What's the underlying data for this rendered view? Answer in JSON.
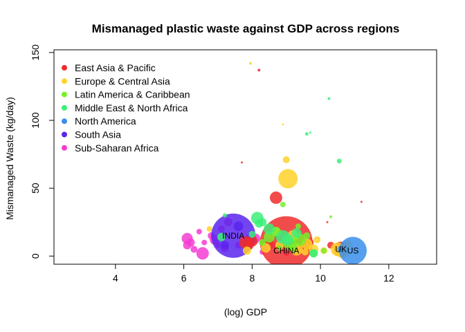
{
  "chart_data": {
    "type": "scatter",
    "title": "Mismanaged plastic waste against GDP across regions",
    "xlabel": "(log) GDP",
    "ylabel": "Mismanaged Waste (kg/day)",
    "xlim": [
      2.2,
      13.4
    ],
    "ylim": [
      -6,
      152
    ],
    "xticks": [
      "4",
      "6",
      "8",
      "10",
      "12"
    ],
    "yticks": [
      "0",
      "50",
      "100",
      "150"
    ],
    "grid": false,
    "legend_position": "top-left",
    "legend": [
      {
        "name": "East Asia & Pacific",
        "color": "#F02C2C"
      },
      {
        "name": "Europe & Central Asia",
        "color": "#FFD22A"
      },
      {
        "name": "Latin America & Caribbean",
        "color": "#73F02C"
      },
      {
        "name": "Middle East & North Africa",
        "color": "#3CF07A"
      },
      {
        "name": "North America",
        "color": "#3A8EEC"
      },
      {
        "name": "South Asia",
        "color": "#5A24EE"
      },
      {
        "name": "Sub-Saharan Africa",
        "color": "#F43CD4"
      }
    ],
    "annotations": [
      {
        "text": "INDIA",
        "x": 7.45,
        "y": 15
      },
      {
        "text": "CHINA",
        "x": 9.0,
        "y": 4
      },
      {
        "text": "UK",
        "x": 10.6,
        "y": 5
      },
      {
        "text": "US",
        "x": 10.95,
        "y": 4
      }
    ],
    "series": [
      {
        "name": "Sub-Saharan Africa",
        "points": [
          {
            "x": 6.1,
            "y": 13,
            "size": 8
          },
          {
            "x": 6.2,
            "y": 10,
            "size": 6
          },
          {
            "x": 6.1,
            "y": 8,
            "size": 6
          },
          {
            "x": 6.3,
            "y": 5,
            "size": 5
          },
          {
            "x": 6.55,
            "y": 2,
            "size": 9
          },
          {
            "x": 6.9,
            "y": 12,
            "size": 7
          },
          {
            "x": 7.1,
            "y": 20,
            "size": 5
          },
          {
            "x": 6.8,
            "y": 15,
            "size": 5
          },
          {
            "x": 7.2,
            "y": 6,
            "size": 6
          },
          {
            "x": 7.3,
            "y": 25,
            "size": 6
          },
          {
            "x": 7.6,
            "y": 8,
            "size": 5
          },
          {
            "x": 7.95,
            "y": 12,
            "size": 9
          },
          {
            "x": 8.1,
            "y": 13,
            "size": 7
          },
          {
            "x": 6.6,
            "y": 10,
            "size": 4
          },
          {
            "x": 7.0,
            "y": 8,
            "size": 4
          },
          {
            "x": 7.8,
            "y": 6,
            "size": 4
          },
          {
            "x": 8.3,
            "y": 3,
            "size": 4
          },
          {
            "x": 8.6,
            "y": 8,
            "size": 5
          },
          {
            "x": 9.0,
            "y": 2,
            "size": 4
          },
          {
            "x": 6.45,
            "y": 18,
            "size": 4
          }
        ]
      },
      {
        "name": "South Asia",
        "points": [
          {
            "x": 7.45,
            "y": 15,
            "size": 32
          },
          {
            "x": 7.6,
            "y": 22,
            "size": 7
          },
          {
            "x": 7.2,
            "y": 8,
            "size": 6
          },
          {
            "x": 7.9,
            "y": 10,
            "size": 5
          },
          {
            "x": 8.35,
            "y": 6,
            "size": 5
          }
        ]
      },
      {
        "name": "East Asia & Pacific",
        "points": [
          {
            "x": 9.0,
            "y": 10,
            "size": 38
          },
          {
            "x": 8.7,
            "y": 43,
            "size": 9
          },
          {
            "x": 8.2,
            "y": 137,
            "size": 2
          },
          {
            "x": 7.8,
            "y": 10,
            "size": 9
          },
          {
            "x": 7.9,
            "y": 8,
            "size": 7
          },
          {
            "x": 8.0,
            "y": 11,
            "size": 8
          },
          {
            "x": 8.5,
            "y": 10,
            "size": 6
          },
          {
            "x": 9.5,
            "y": 8,
            "size": 6
          },
          {
            "x": 10.2,
            "y": 25,
            "size": 1.5
          },
          {
            "x": 7.7,
            "y": 69,
            "size": 1.5
          },
          {
            "x": 11.2,
            "y": 40,
            "size": 1.5
          },
          {
            "x": 10.6,
            "y": 5,
            "size": 11
          },
          {
            "x": 10.3,
            "y": 8,
            "size": 5
          },
          {
            "x": 9.7,
            "y": 10,
            "size": 5
          }
        ]
      },
      {
        "name": "Europe & Central Asia",
        "points": [
          {
            "x": 9.05,
            "y": 57,
            "size": 14
          },
          {
            "x": 9.0,
            "y": 71,
            "size": 5
          },
          {
            "x": 7.95,
            "y": 142,
            "size": 2
          },
          {
            "x": 8.9,
            "y": 97,
            "size": 1.5
          },
          {
            "x": 9.3,
            "y": 5,
            "size": 9
          },
          {
            "x": 9.2,
            "y": 15,
            "size": 8
          },
          {
            "x": 9.6,
            "y": 9,
            "size": 8
          },
          {
            "x": 9.8,
            "y": 5,
            "size": 7
          },
          {
            "x": 10.5,
            "y": 5,
            "size": 10
          },
          {
            "x": 10.65,
            "y": 3,
            "size": 9
          },
          {
            "x": 10.8,
            "y": 8,
            "size": 7
          },
          {
            "x": 8.4,
            "y": 6,
            "size": 7
          },
          {
            "x": 8.7,
            "y": 18,
            "size": 6
          },
          {
            "x": 8.8,
            "y": 8,
            "size": 6
          },
          {
            "x": 9.9,
            "y": 12,
            "size": 5
          },
          {
            "x": 6.75,
            "y": 20,
            "size": 4
          },
          {
            "x": 7.85,
            "y": 4,
            "size": 6
          },
          {
            "x": 10.1,
            "y": 4,
            "size": 5
          },
          {
            "x": 9.55,
            "y": 3,
            "size": 5
          }
        ]
      },
      {
        "name": "Latin America & Caribbean",
        "points": [
          {
            "x": 8.9,
            "y": 38,
            "size": 4
          },
          {
            "x": 9.4,
            "y": 12,
            "size": 9
          },
          {
            "x": 9.1,
            "y": 9,
            "size": 9
          },
          {
            "x": 8.5,
            "y": 14,
            "size": 8
          },
          {
            "x": 8.7,
            "y": 18,
            "size": 7
          },
          {
            "x": 9.8,
            "y": 2,
            "size": 6
          },
          {
            "x": 10.3,
            "y": 29,
            "size": 2
          },
          {
            "x": 8.3,
            "y": 10,
            "size": 5
          },
          {
            "x": 9.2,
            "y": 6,
            "size": 6
          },
          {
            "x": 9.6,
            "y": 15,
            "size": 5
          },
          {
            "x": 8.8,
            "y": 6,
            "size": 4
          },
          {
            "x": 10.1,
            "y": 4,
            "size": 4
          },
          {
            "x": 9.35,
            "y": 22,
            "size": 4
          }
        ]
      },
      {
        "name": "Middle East & North Africa",
        "points": [
          {
            "x": 10.25,
            "y": 116,
            "size": 2
          },
          {
            "x": 9.6,
            "y": 90,
            "size": 2.5
          },
          {
            "x": 10.55,
            "y": 70,
            "size": 3.5
          },
          {
            "x": 8.15,
            "y": 28,
            "size": 9
          },
          {
            "x": 8.5,
            "y": 20,
            "size": 8
          },
          {
            "x": 8.9,
            "y": 14,
            "size": 10
          },
          {
            "x": 9.05,
            "y": 12,
            "size": 8
          },
          {
            "x": 9.3,
            "y": 17,
            "size": 7
          },
          {
            "x": 8.3,
            "y": 25,
            "size": 6
          },
          {
            "x": 9.8,
            "y": 2,
            "size": 6
          },
          {
            "x": 7.1,
            "y": 14,
            "size": 6
          },
          {
            "x": 8.0,
            "y": 16,
            "size": 5
          },
          {
            "x": 9.7,
            "y": 91,
            "size": 1.5
          },
          {
            "x": 7.2,
            "y": 30,
            "size": 3
          },
          {
            "x": 8.2,
            "y": 24,
            "size": 6
          }
        ]
      },
      {
        "name": "North America",
        "points": [
          {
            "x": 10.95,
            "y": 4,
            "size": 20
          },
          {
            "x": 10.6,
            "y": 5,
            "size": 5
          }
        ]
      }
    ]
  }
}
